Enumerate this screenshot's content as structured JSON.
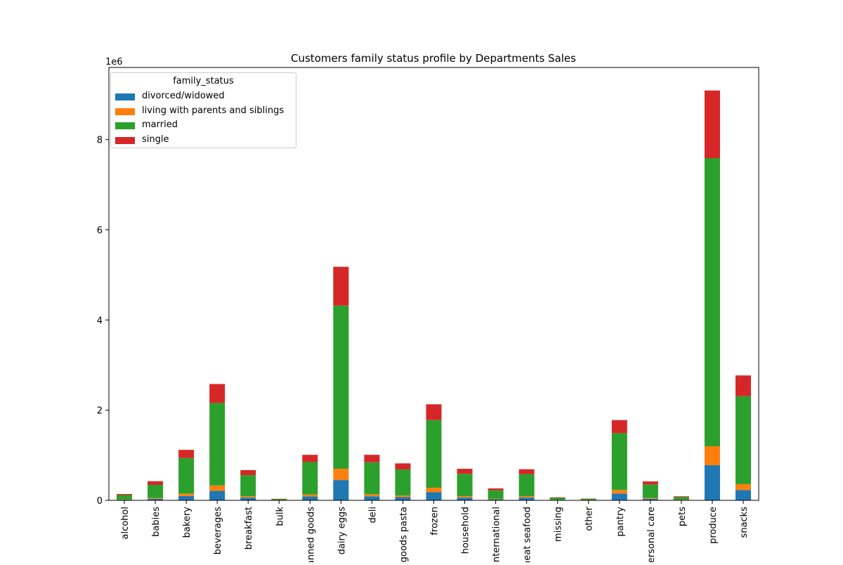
{
  "chart_data": {
    "type": "bar",
    "stacked": true,
    "title": "Customers family status profile by Departments Sales",
    "xlabel": "",
    "ylabel": "",
    "y_multiplier_label": "1e6",
    "ylim": [
      0,
      9600000
    ],
    "yticks": [
      0,
      2,
      4,
      6,
      8
    ],
    "grid": false,
    "legend": {
      "title": "family_status",
      "placement": "top-left"
    },
    "categories": [
      "alcohol",
      "babies",
      "bakery",
      "beverages",
      "breakfast",
      "bulk",
      "canned goods",
      "dairy eggs",
      "deli",
      "dry goods pasta",
      "frozen",
      "household",
      "international",
      "meat seafood",
      "missing",
      "other",
      "pantry",
      "personal care",
      "pets",
      "produce",
      "snacks"
    ],
    "series": [
      {
        "name": "divorced/widowed",
        "color": "#1f77b4",
        "values": [
          15000,
          35000,
          95000,
          210000,
          60000,
          3000,
          85000,
          450000,
          90000,
          70000,
          180000,
          60000,
          22000,
          60000,
          6000,
          3000,
          150000,
          35000,
          9000,
          780000,
          230000
        ]
      },
      {
        "name": "living with parents and siblings",
        "color": "#ff7f0e",
        "values": [
          7000,
          18000,
          55000,
          120000,
          30000,
          2000,
          45000,
          250000,
          45000,
          35000,
          100000,
          30000,
          11000,
          30000,
          4000,
          2000,
          80000,
          18000,
          5000,
          420000,
          130000
        ]
      },
      {
        "name": "married",
        "color": "#2ca02c",
        "values": [
          95000,
          290000,
          790000,
          1830000,
          470000,
          25000,
          720000,
          3620000,
          710000,
          580000,
          1500000,
          500000,
          190000,
          490000,
          45000,
          30000,
          1260000,
          300000,
          60000,
          6390000,
          1950000
        ]
      },
      {
        "name": "single",
        "color": "#d62728",
        "values": [
          23000,
          82000,
          180000,
          420000,
          110000,
          5000,
          160000,
          860000,
          165000,
          135000,
          350000,
          110000,
          42000,
          110000,
          12000,
          5000,
          290000,
          67000,
          16000,
          1500000,
          460000
        ]
      }
    ]
  }
}
